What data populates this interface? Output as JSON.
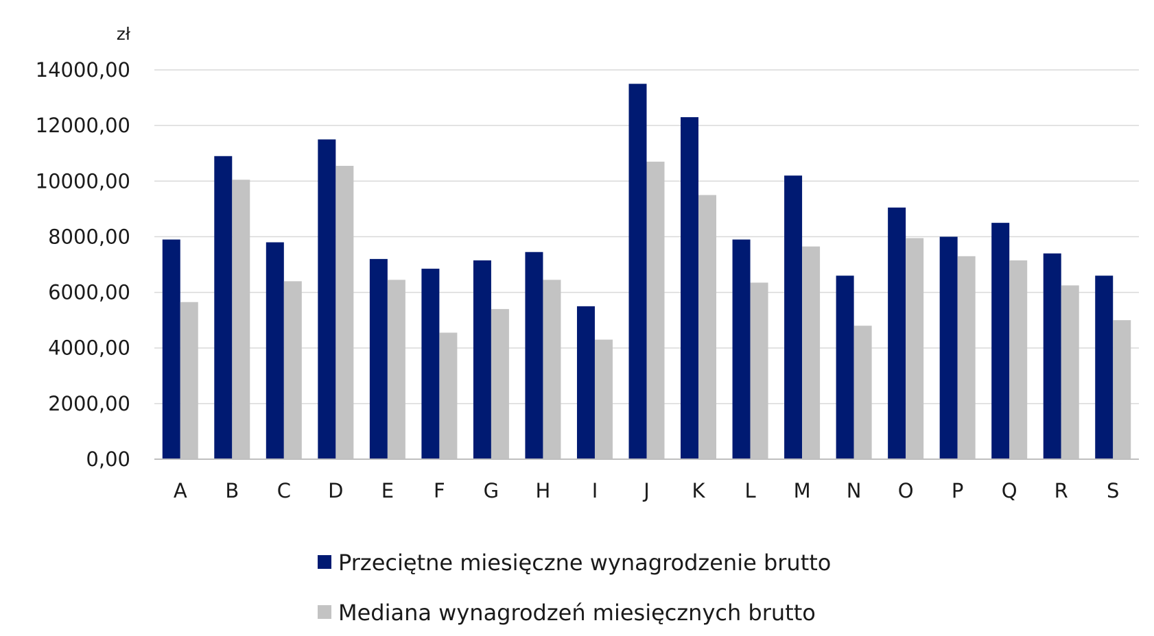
{
  "chart_data": {
    "type": "bar",
    "unit_label": "zł",
    "title": "",
    "xlabel": "",
    "ylabel": "",
    "categories": [
      "A",
      "B",
      "C",
      "D",
      "E",
      "F",
      "G",
      "H",
      "I",
      "J",
      "K",
      "L",
      "M",
      "N",
      "O",
      "P",
      "Q",
      "R",
      "S"
    ],
    "series": [
      {
        "name": "Przeciętne miesięczne wynagrodzenie brutto",
        "color": "#001a72",
        "values": [
          7900,
          10900,
          7800,
          11500,
          7200,
          6850,
          7150,
          7450,
          5500,
          13500,
          12300,
          7900,
          10200,
          6600,
          9050,
          8000,
          8500,
          7400,
          6600
        ]
      },
      {
        "name": "Mediana wynagrodzeń miesięcznych brutto",
        "color": "#c3c3c3",
        "values": [
          5650,
          10050,
          6400,
          10550,
          6450,
          4550,
          5400,
          6450,
          4300,
          10700,
          9500,
          6350,
          7650,
          4800,
          7950,
          7300,
          7150,
          6250,
          5000
        ]
      }
    ],
    "ylim": [
      0,
      14000
    ],
    "yticks": [
      0,
      2000,
      4000,
      6000,
      8000,
      10000,
      12000,
      14000
    ],
    "ytick_labels": [
      "0,00",
      "2000,00",
      "4000,00",
      "6000,00",
      "8000,00",
      "10000,00",
      "12000,00",
      "14000,00"
    ],
    "grid": true,
    "legend_position": "bottom"
  }
}
